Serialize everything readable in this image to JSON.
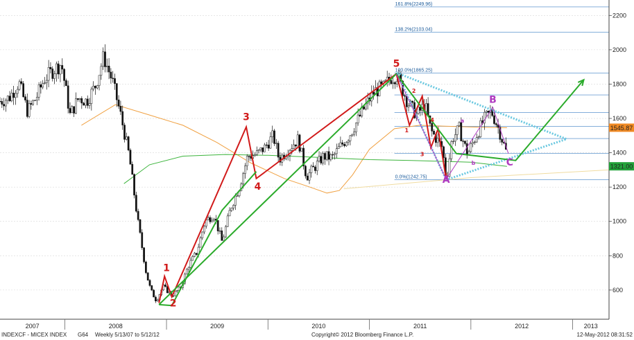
{
  "chart_data": {
    "type": "candlestick",
    "title": "",
    "security": "INDEXCF - MICEX INDEX",
    "footer": {
      "left_ticker": "INDEXCF - MICEX INDEX",
      "left_page": "G64",
      "left_range": "Weekly  5/13/07 to 5/12/12",
      "center": "Copyright© 2012 Bloomberg Finance L.P.",
      "right": "12-May-2012 08:31:52"
    },
    "x_axis": {
      "labels": [
        "2007",
        "2008",
        "2009",
        "2010",
        "2011",
        "2012",
        "2013"
      ],
      "range": [
        "2007-05-13",
        "2013-05-12"
      ]
    },
    "y_axis": {
      "ticks": [
        600,
        800,
        1000,
        1200,
        1400,
        1600,
        1800,
        2000,
        2200
      ],
      "range": [
        430,
        2290
      ],
      "position": "right"
    },
    "price_labels": [
      {
        "value": "1545.87",
        "price": 1545.87,
        "color": "#f08a24"
      },
      {
        "value": "1321.00",
        "price": 1321.0,
        "color": "#23a23a"
      }
    ],
    "fibonacci_levels": [
      {
        "label": "161.8%(2249.96)",
        "price": 2249.96
      },
      {
        "label": "138.2%(2103.04)",
        "price": 2103.04
      },
      {
        "label": "100.0%(1865.25)",
        "price": 1865.25
      },
      {
        "label": "",
        "price": 1737
      },
      {
        "label": "",
        "price": 1634
      },
      {
        "label": "",
        "price": 1554
      },
      {
        "label": "",
        "price": 1483
      },
      {
        "label": "",
        "price": 1397
      },
      {
        "label": "0.0%(1242.75)",
        "price": 1242.75
      }
    ],
    "price_series": [
      [
        "2007-05-13",
        1700
      ],
      [
        "2007-06-15",
        1720
      ],
      [
        "2007-07-20",
        1810
      ],
      [
        "2007-08-20",
        1640
      ],
      [
        "2007-09-20",
        1720
      ],
      [
        "2007-10-20",
        1830
      ],
      [
        "2007-11-20",
        1880
      ],
      [
        "2007-12-20",
        1920
      ],
      [
        "2008-01-20",
        1620
      ],
      [
        "2008-02-20",
        1720
      ],
      [
        "2008-03-20",
        1700
      ],
      [
        "2008-04-20",
        1790
      ],
      [
        "2008-05-20",
        1960
      ],
      [
        "2008-06-20",
        1820
      ],
      [
        "2008-07-20",
        1620
      ],
      [
        "2008-08-20",
        1380
      ],
      [
        "2008-09-20",
        1000
      ],
      [
        "2008-10-20",
        700
      ],
      [
        "2008-11-05",
        600
      ],
      [
        "2008-11-25",
        540
      ],
      [
        "2008-12-20",
        620
      ],
      [
        "2009-01-20",
        570
      ],
      [
        "2009-02-20",
        610
      ],
      [
        "2009-03-20",
        740
      ],
      [
        "2009-04-20",
        820
      ],
      [
        "2009-05-20",
        1000
      ],
      [
        "2009-06-20",
        1040
      ],
      [
        "2009-07-20",
        880
      ],
      [
        "2009-08-20",
        1080
      ],
      [
        "2009-09-20",
        1200
      ],
      [
        "2009-10-20",
        1380
      ],
      [
        "2009-11-20",
        1390
      ],
      [
        "2009-12-20",
        1430
      ],
      [
        "2010-01-20",
        1500
      ],
      [
        "2010-02-10",
        1360
      ],
      [
        "2010-03-20",
        1430
      ],
      [
        "2010-04-20",
        1480
      ],
      [
        "2010-05-20",
        1260
      ],
      [
        "2010-06-20",
        1320
      ],
      [
        "2010-07-20",
        1380
      ],
      [
        "2010-08-20",
        1370
      ],
      [
        "2010-09-20",
        1440
      ],
      [
        "2010-10-20",
        1500
      ],
      [
        "2010-11-20",
        1590
      ],
      [
        "2010-12-20",
        1680
      ],
      [
        "2011-01-20",
        1760
      ],
      [
        "2011-02-20",
        1780
      ],
      [
        "2011-03-20",
        1840
      ],
      [
        "2011-04-10",
        1850
      ],
      [
        "2011-05-20",
        1690
      ],
      [
        "2011-06-20",
        1620
      ],
      [
        "2011-07-20",
        1680
      ],
      [
        "2011-08-10",
        1530
      ],
      [
        "2011-09-20",
        1430
      ],
      [
        "2011-10-05",
        1240
      ],
      [
        "2011-10-25",
        1480
      ],
      [
        "2011-11-20",
        1540
      ],
      [
        "2011-12-20",
        1390
      ],
      [
        "2012-01-20",
        1500
      ],
      [
        "2012-02-20",
        1600
      ],
      [
        "2012-03-15",
        1640
      ],
      [
        "2012-04-10",
        1540
      ],
      [
        "2012-05-10",
        1390
      ]
    ],
    "ma_orange": [
      [
        "2008-03-01",
        1560
      ],
      [
        "2008-07-01",
        1680
      ],
      [
        "2008-11-01",
        1620
      ],
      [
        "2009-03-01",
        1560
      ],
      [
        "2009-07-01",
        1460
      ],
      [
        "2009-11-01",
        1340
      ],
      [
        "2010-03-01",
        1250
      ],
      [
        "2010-06-01",
        1200
      ],
      [
        "2010-08-01",
        1165
      ],
      [
        "2010-09-15",
        1180
      ],
      [
        "2010-11-01",
        1270
      ],
      [
        "2011-01-01",
        1420
      ],
      [
        "2011-04-01",
        1540
      ],
      [
        "2011-07-01",
        1560
      ],
      [
        "2011-10-01",
        1555
      ],
      [
        "2012-01-01",
        1550
      ],
      [
        "2012-05-10",
        1546
      ]
    ],
    "ma_green": [
      [
        "2008-08-01",
        1220
      ],
      [
        "2008-11-01",
        1330
      ],
      [
        "2009-03-01",
        1380
      ],
      [
        "2009-08-01",
        1390
      ],
      [
        "2010-01-01",
        1385
      ],
      [
        "2010-06-01",
        1375
      ],
      [
        "2011-01-01",
        1360
      ],
      [
        "2011-06-01",
        1355
      ],
      [
        "2012-01-01",
        1345
      ],
      [
        "2012-05-10",
        1321
      ]
    ],
    "ma_pale": [
      [
        "2010-10-01",
        1190
      ],
      [
        "2011-06-01",
        1225
      ],
      [
        "2012-01-01",
        1255
      ],
      [
        "2013-05-10",
        1300
      ]
    ],
    "waves": [
      {
        "color": "#d11a1a",
        "points": [
          [
            "2008-12-05",
            525
          ],
          [
            "2008-12-25",
            680
          ],
          [
            "2009-01-20",
            560
          ],
          [
            "2009-10-15",
            1550
          ],
          [
            "2009-11-20",
            1250
          ],
          [
            "2011-04-08",
            1860
          ]
        ]
      },
      {
        "color": "#d11a1a",
        "points": [
          [
            "2011-04-08",
            1860
          ],
          [
            "2011-05-25",
            1560
          ],
          [
            "2011-07-10",
            1730
          ],
          [
            "2011-08-10",
            1430
          ],
          [
            "2011-09-05",
            1540
          ],
          [
            "2011-10-04",
            1245
          ]
        ]
      },
      {
        "color": "#2bab2b",
        "points": [
          [
            "2008-12-05",
            515
          ],
          [
            "2011-04-08",
            1860
          ],
          [
            "2011-11-10",
            1395
          ],
          [
            "2012-06-10",
            1355
          ],
          [
            "2013-02-10",
            1825
          ]
        ]
      },
      {
        "color": "#2bab2b",
        "points": [
          [
            "2008-12-05",
            515
          ],
          [
            "2009-01-20",
            510
          ],
          [
            "2009-07-20",
            1065
          ],
          [
            "2009-11-20",
            1290
          ]
        ]
      }
    ],
    "abc_lines": {
      "color": "#b03ac0",
      "points": [
        [
          "2011-04-08",
          1860
        ],
        [
          "2011-10-04",
          1245
        ],
        [
          "2012-03-20",
          1665
        ],
        [
          "2012-05-15",
          1395
        ]
      ]
    },
    "triangle": {
      "color": "#6ac8e0",
      "points": [
        [
          "2011-04-10",
          1865
        ],
        [
          "2012-12-10",
          1480
        ],
        [
          "2011-10-04",
          1242
        ]
      ]
    },
    "wave_labels": [
      {
        "text": "1",
        "date": "2009-01-01",
        "price": 710,
        "color": "#d11a1a",
        "size": 14
      },
      {
        "text": "2",
        "date": "2009-01-25",
        "price": 505,
        "color": "#d11a1a",
        "size": 14
      },
      {
        "text": "3",
        "date": "2009-10-15",
        "price": 1590,
        "color": "#d11a1a",
        "size": 14
      },
      {
        "text": "4",
        "date": "2009-11-25",
        "price": 1185,
        "color": "#d11a1a",
        "size": 14
      },
      {
        "text": "5",
        "date": "2011-04-08",
        "price": 1900,
        "color": "#d11a1a",
        "size": 14
      },
      {
        "text": "1",
        "date": "2011-05-15",
        "price": 1520,
        "color": "#d11a1a",
        "size": 8
      },
      {
        "text": "2",
        "date": "2011-06-10",
        "price": 1750,
        "color": "#d11a1a",
        "size": 8
      },
      {
        "text": "3",
        "date": "2011-07-10",
        "price": 1380,
        "color": "#d11a1a",
        "size": 8
      },
      {
        "text": "4",
        "date": "2011-08-15",
        "price": 1580,
        "color": "#d11a1a",
        "size": 8
      },
      {
        "text": "5",
        "date": "2011-10-04",
        "price": 1255,
        "color": "#d11a1a",
        "size": 8
      },
      {
        "text": "A",
        "date": "2011-10-04",
        "price": 1225,
        "color": "#b03ac0",
        "size": 14
      },
      {
        "text": "a",
        "date": "2011-12-01",
        "price": 1575,
        "color": "#b03ac0",
        "size": 8
      },
      {
        "text": "b",
        "date": "2012-01-10",
        "price": 1330,
        "color": "#b03ac0",
        "size": 8
      },
      {
        "text": "B",
        "date": "2012-03-20",
        "price": 1690,
        "color": "#b03ac0",
        "size": 14
      },
      {
        "text": "C",
        "date": "2012-05-20",
        "price": 1325,
        "color": "#b03ac0",
        "size": 14
      }
    ]
  }
}
